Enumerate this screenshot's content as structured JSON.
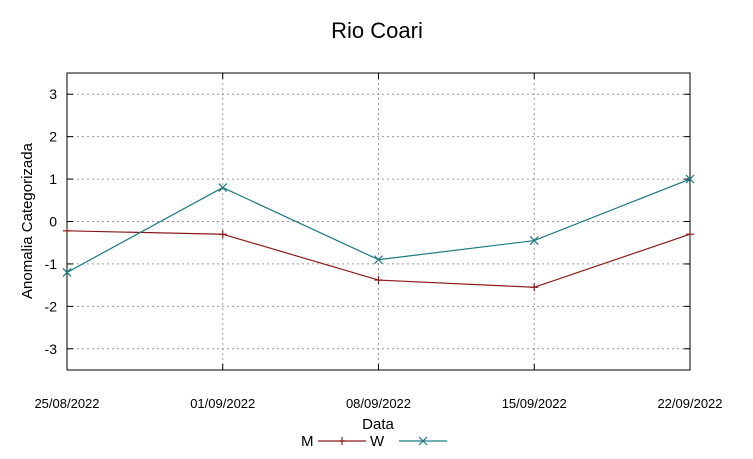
{
  "chart_data": {
    "type": "line",
    "title": "Rio Coari",
    "xlabel": "Data",
    "ylabel": "Anomalia Categorizada",
    "categories": [
      "25/08/2022",
      "01/09/2022",
      "08/09/2022",
      "15/09/2022",
      "22/09/2022"
    ],
    "ylim": [
      -3.5,
      3.5
    ],
    "yticks": [
      "3",
      "2",
      "1",
      "0",
      "-1",
      "-2",
      "-3"
    ],
    "ytick_values": [
      3,
      2,
      1,
      0,
      -1,
      -2,
      -3
    ],
    "grid": true,
    "legend_position": "bottom-center",
    "series": [
      {
        "name": "M",
        "color": "#8b1a1a",
        "marker": "plus",
        "values": [
          -0.22,
          -0.3,
          -1.38,
          -1.55,
          -0.3
        ]
      },
      {
        "name": "W",
        "color": "#1a7a80",
        "marker": "cross",
        "values": [
          -1.2,
          0.8,
          -0.9,
          -0.45,
          1.0
        ]
      }
    ]
  }
}
